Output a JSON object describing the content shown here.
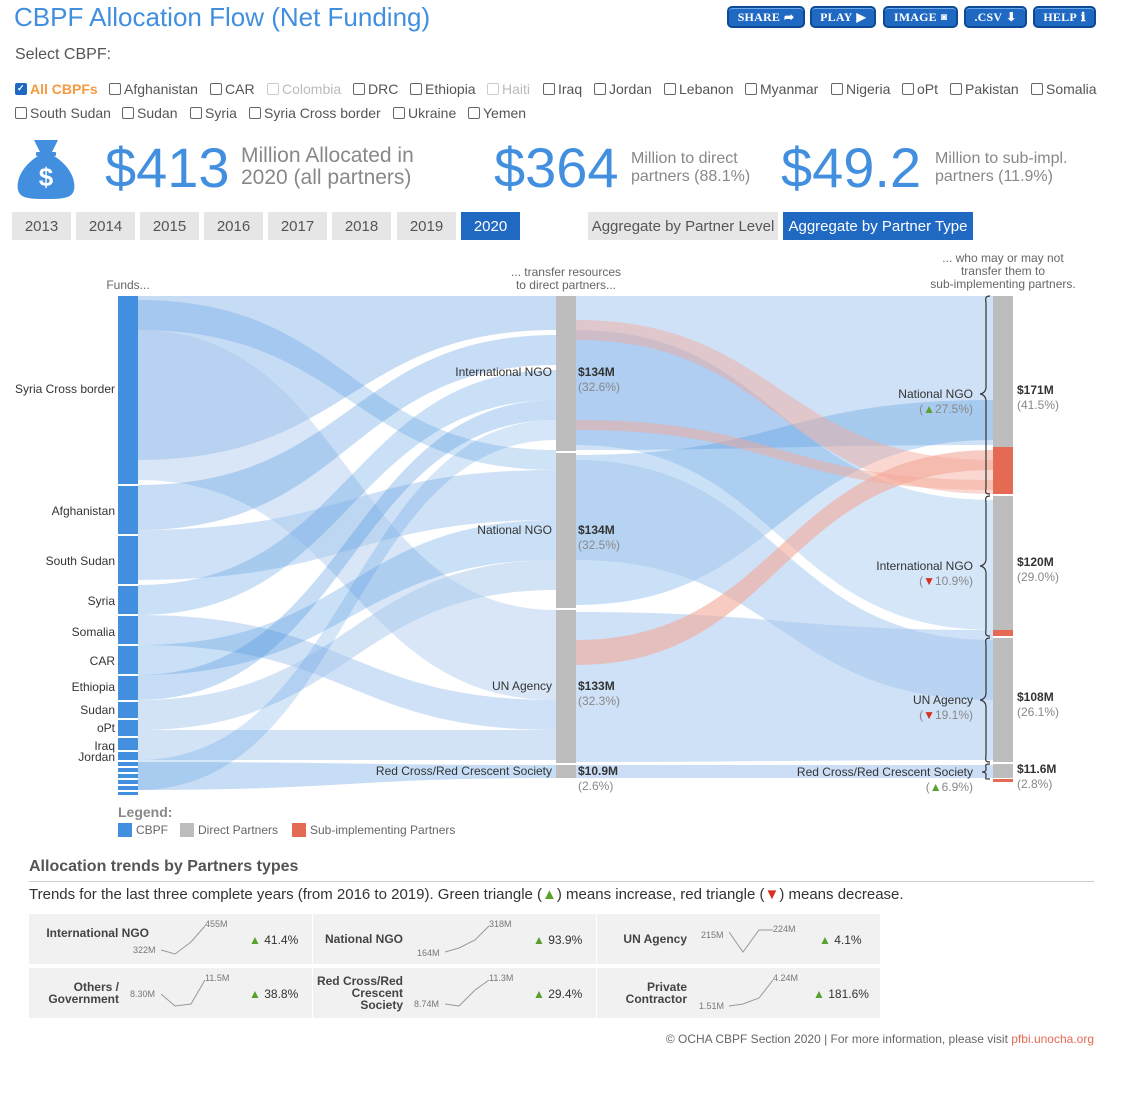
{
  "header": {
    "title": "CBPF Allocation Flow (Net Funding)",
    "buttons": [
      "SHARE",
      "PLAY",
      "IMAGE",
      ".CSV",
      "HELP"
    ]
  },
  "select_label": "Select CBPF:",
  "cbpfs": [
    {
      "label": "All CBPFs",
      "state": "checked"
    },
    {
      "label": "Afghanistan",
      "state": "unchecked"
    },
    {
      "label": "CAR",
      "state": "unchecked"
    },
    {
      "label": "Colombia",
      "state": "disabled"
    },
    {
      "label": "DRC",
      "state": "unchecked"
    },
    {
      "label": "Ethiopia",
      "state": "unchecked"
    },
    {
      "label": "Haiti",
      "state": "disabled"
    },
    {
      "label": "Iraq",
      "state": "unchecked"
    },
    {
      "label": "Jordan",
      "state": "unchecked"
    },
    {
      "label": "Lebanon",
      "state": "unchecked"
    },
    {
      "label": "Myanmar",
      "state": "unchecked"
    },
    {
      "label": "Nigeria",
      "state": "unchecked"
    },
    {
      "label": "oPt",
      "state": "unchecked"
    },
    {
      "label": "Pakistan",
      "state": "unchecked"
    },
    {
      "label": "Somalia",
      "state": "unchecked"
    },
    {
      "label": "South Sudan",
      "state": "unchecked"
    },
    {
      "label": "Sudan",
      "state": "unchecked"
    },
    {
      "label": "Syria",
      "state": "unchecked"
    },
    {
      "label": "Syria Cross border",
      "state": "unchecked"
    },
    {
      "label": "Ukraine",
      "state": "unchecked"
    },
    {
      "label": "Yemen",
      "state": "unchecked"
    }
  ],
  "summary": {
    "allocated_value": "$413",
    "allocated_line1": "Million Allocated in",
    "allocated_line2": "2020 (all partners)",
    "direct_value": "$364",
    "direct_line1": "Million to direct",
    "direct_line2": "partners (88.1%)",
    "sub_value": "$49.2",
    "sub_line1": "Million to sub-impl.",
    "sub_line2": "partners (11.9%)"
  },
  "years": [
    "2013",
    "2014",
    "2015",
    "2016",
    "2017",
    "2018",
    "2019",
    "2020"
  ],
  "selected_year": "2020",
  "aggregate": {
    "level": "Aggregate by Partner Level",
    "type": "Aggregate by Partner Type",
    "selected": "type"
  },
  "sankey": {
    "col_funds": "Funds...",
    "col_direct_1": "... transfer resources",
    "col_direct_2": "to direct partners...",
    "col_sub_1": "... who may or may not",
    "col_sub_2": "transfer them to",
    "col_sub_3": "sub-implementing partners.",
    "funds": [
      "Syria Cross border",
      "Afghanistan",
      "South Sudan",
      "Syria",
      "Somalia",
      "CAR",
      "Ethiopia",
      "Sudan",
      "oPt",
      "Iraq",
      "Jordan"
    ],
    "direct": [
      {
        "name": "International NGO",
        "value": "$134M",
        "pct": "(32.6%)"
      },
      {
        "name": "National NGO",
        "value": "$134M",
        "pct": "(32.5%)"
      },
      {
        "name": "UN Agency",
        "value": "$133M",
        "pct": "(32.3%)"
      },
      {
        "name": "Red Cross/Red Crescent Society",
        "value": "$10.9M",
        "pct": "(2.6%)"
      }
    ],
    "sub": [
      {
        "name": "National NGO",
        "trend": "▲",
        "change": "27.5%",
        "value": "$171M",
        "pct": "(41.5%)",
        "color": "#5aa02c"
      },
      {
        "name": "International NGO",
        "trend": "▼",
        "change": "10.9%",
        "value": "$120M",
        "pct": "(29.0%)",
        "color": "#d7301f"
      },
      {
        "name": "UN Agency",
        "trend": "▼",
        "change": "19.1%",
        "value": "$108M",
        "pct": "(26.1%)",
        "color": "#d7301f"
      },
      {
        "name": "Red Cross/Red Crescent Society",
        "trend": "▲",
        "change": "6.9%",
        "value": "$11.6M",
        "pct": "(2.8%)",
        "color": "#5aa02c"
      }
    ],
    "legend_title": "Legend:",
    "legend": [
      {
        "label": "CBPF",
        "color": "#418fde"
      },
      {
        "label": "Direct Partners",
        "color": "#bdbdbd"
      },
      {
        "label": "Sub-implementing Partners",
        "color": "#e56a54"
      }
    ]
  },
  "trends": {
    "title": "Allocation trends by Partners types",
    "subtitle_a": "Trends for the last three complete years (from 2016 to 2019). Green triangle (",
    "subtitle_up": "▲",
    "subtitle_b": ") means increase, red triangle (",
    "subtitle_down": "▼",
    "subtitle_c": ") means decrease.",
    "cards": [
      {
        "name": "International NGO",
        "start": "322M",
        "end": "455M",
        "change": "41.4%"
      },
      {
        "name": "National NGO",
        "start": "164M",
        "end": "318M",
        "change": "93.9%"
      },
      {
        "name": "UN Agency",
        "start": "215M",
        "end": "224M",
        "change": "4.1%"
      },
      {
        "name": "Others / Government",
        "start": "8.30M",
        "end": "11.5M",
        "change": "38.8%"
      },
      {
        "name": "Red Cross/Red Crescent Society",
        "start": "8.74M",
        "end": "11.3M",
        "change": "29.4%"
      },
      {
        "name": "Private Contractor",
        "start": "1.51M",
        "end": "4.24M",
        "change": "181.6%"
      }
    ]
  },
  "footer": {
    "text": "© OCHA CBPF Section 2020 | For more information, please visit ",
    "link": "pfbi.unocha.org"
  }
}
